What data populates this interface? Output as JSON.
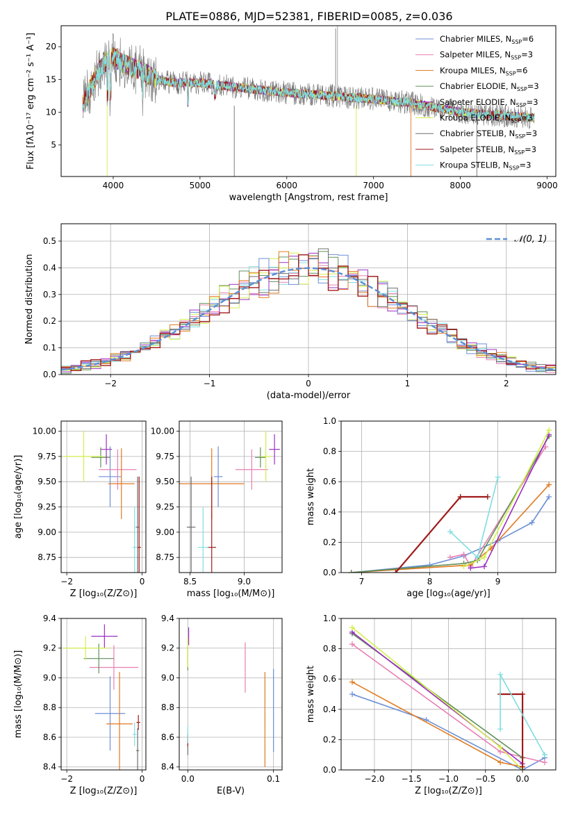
{
  "figure": {
    "title": "PLATE=0886, MJD=52381, FIBERID=0085, z=0.036"
  },
  "colors": {
    "Chabrier MILES": "#6b8fd4",
    "Salpeter MILES": "#e87fb2",
    "Kroupa MILES": "#e07a1f",
    "Chabrier ELODIE": "#5f8f5a",
    "Salpeter ELODIE": "#9b2fc0",
    "Kroupa ELODIE": "#d2ef4a",
    "Chabrier STELIB": "#6e6e6e",
    "Salpeter STELIB": "#a01a1a",
    "Kroupa STELIB": "#7fdde0",
    "gauss": "#5b8fd6"
  },
  "chart_data": [
    {
      "id": "spectrum",
      "type": "line",
      "xlabel": "wavelength [Angstrom, rest frame]",
      "ylabel": "Flux [fλ10⁻¹⁷ erg cm⁻² s⁻¹ A⁻¹]",
      "xlim": [
        3400,
        9100
      ],
      "ylim": [
        0.2,
        23.2
      ],
      "xticks": [
        4000,
        5000,
        6000,
        7000,
        8000,
        9000
      ],
      "yticks": [
        5,
        10,
        15,
        20
      ],
      "grid": false,
      "legend_position": "top-right",
      "continuum": {
        "x": [
          3650,
          3700,
          3800,
          3900,
          4000,
          4100,
          4300,
          4500,
          4700,
          5000,
          5300,
          5600,
          6000,
          6500,
          7000,
          7400,
          7600,
          7800,
          8000,
          8200,
          8500,
          8800
        ],
        "y": [
          11.0,
          12.5,
          15.5,
          17.5,
          18.5,
          17.5,
          16.5,
          15.0,
          14.5,
          14.5,
          14.0,
          13.5,
          13.0,
          12.5,
          12.0,
          11.5,
          11.0,
          10.5,
          10.0,
          9.8,
          9.5,
          9.2
        ]
      },
      "series": [
        {
          "name": "Chabrier MILES, N_SSP=6",
          "legend": {
            "pre": "Chabrier MILES, N",
            "sub": "SSP",
            "post": "=6"
          }
        },
        {
          "name": "Salpeter MILES, N_SSP=3",
          "legend": {
            "pre": "Salpeter MILES, N",
            "sub": "SSP",
            "post": "=3"
          }
        },
        {
          "name": "Kroupa MILES, N_SSP=6",
          "legend": {
            "pre": "Kroupa MILES, N",
            "sub": "SSP",
            "post": "=6"
          }
        },
        {
          "name": "Chabrier ELODIE, N_SSP=3",
          "legend": {
            "pre": "Chabrier ELODIE, N",
            "sub": "SSP",
            "post": "=3"
          }
        },
        {
          "name": "Salpeter ELODIE, N_SSP=3",
          "legend": {
            "pre": "Salpeter ELODIE, N",
            "sub": "SSP",
            "post": "=3"
          }
        },
        {
          "name": "Kroupa ELODIE, N_SSP=3",
          "legend": {
            "pre": "Kroupa ELODIE, N",
            "sub": "SSP",
            "post": "=3"
          }
        },
        {
          "name": "Chabrier STELIB, N_SSP=3",
          "legend": {
            "pre": "Chabrier STELIB, N",
            "sub": "SSP",
            "post": "=3"
          }
        },
        {
          "name": "Salpeter STELIB, N_SSP=3",
          "legend": {
            "pre": "Salpeter STELIB, N",
            "sub": "SSP",
            "post": "=3"
          }
        },
        {
          "name": "Kroupa STELIB, N_SSP=3",
          "legend": {
            "pre": "Kroupa STELIB, N",
            "sub": "SSP",
            "post": "=3"
          }
        }
      ]
    },
    {
      "id": "residuals",
      "type": "line",
      "xlabel": "(data-model)/error",
      "ylabel": "Normed distribution",
      "xlim": [
        -2.5,
        2.5
      ],
      "ylim": [
        0,
        0.565
      ],
      "xticks": [
        -2,
        -1,
        0,
        1,
        2
      ],
      "yticks": [
        0.0,
        0.1,
        0.2,
        0.3,
        0.4,
        0.5
      ],
      "grid": true,
      "legend_position": "top-right",
      "gaussian": {
        "label": "𝒩(0, 1)",
        "mean": 0,
        "sigma": 1
      }
    },
    {
      "id": "z-age",
      "type": "scatter",
      "xlabel": "Z [log₁₀(Z/Z⊙)]",
      "ylabel": "age  [log₁₀(age/yr)]",
      "xlim": [
        -2.15,
        0.1
      ],
      "ylim": [
        8.6,
        10.1
      ],
      "xticks": [
        -2,
        0
      ],
      "yticks": [
        8.75,
        9.0,
        9.25,
        9.5,
        9.75,
        10.0
      ],
      "grid": true,
      "points": [
        {
          "s": 0,
          "x": -0.85,
          "xerr": 0.3,
          "y": 9.55,
          "yerr": 0.3
        },
        {
          "s": 1,
          "x": -0.65,
          "xerr": 0.5,
          "y": 9.62,
          "yerr": 0.2
        },
        {
          "s": 2,
          "x": -0.55,
          "xerr": 0.35,
          "y": 9.48,
          "yerr": 0.35
        },
        {
          "s": 3,
          "x": -1.1,
          "xerr": 0.25,
          "y": 9.74,
          "yerr": 0.1
        },
        {
          "s": 4,
          "x": -0.95,
          "xerr": 0.15,
          "y": 9.82,
          "yerr": 0.15
        },
        {
          "s": 5,
          "x": -1.55,
          "xerr": 0.55,
          "y": 9.75,
          "yerr": 0.25
        },
        {
          "s": 6,
          "x": -0.12,
          "xerr": 0.05,
          "y": 9.05,
          "yerr": 0.5
        },
        {
          "s": 7,
          "x": -0.08,
          "xerr": 0.05,
          "y": 8.85,
          "yerr": 0.7
        },
        {
          "s": 8,
          "x": -0.2,
          "xerr": 0.05,
          "y": 8.85,
          "yerr": 0.4
        }
      ]
    },
    {
      "id": "mass-age",
      "type": "scatter",
      "xlabel": "mass [log₁₀(M/M⊙)]",
      "ylabel": "",
      "xlim": [
        8.4,
        9.35
      ],
      "ylim": [
        8.6,
        10.1
      ],
      "xticks": [
        8.5,
        9.0
      ],
      "yticks": [
        8.75,
        9.0,
        9.25,
        9.5,
        9.75,
        10.0
      ],
      "grid": true,
      "points": [
        {
          "s": 0,
          "x": 8.76,
          "xerr": 0.04,
          "y": 9.55,
          "yerr": 0.3
        },
        {
          "s": 1,
          "x": 9.07,
          "xerr": 0.15,
          "y": 9.62,
          "yerr": 0.2
        },
        {
          "s": 2,
          "x": 8.7,
          "xerr": 0.3,
          "y": 9.48,
          "yerr": 0.35
        },
        {
          "s": 3,
          "x": 9.15,
          "xerr": 0.05,
          "y": 9.74,
          "yerr": 0.1
        },
        {
          "s": 4,
          "x": 9.28,
          "xerr": 0.05,
          "y": 9.82,
          "yerr": 0.15
        },
        {
          "s": 5,
          "x": 9.2,
          "xerr": 0.05,
          "y": 9.75,
          "yerr": 0.25
        },
        {
          "s": 6,
          "x": 8.51,
          "xerr": 0.04,
          "y": 9.05,
          "yerr": 0.5
        },
        {
          "s": 7,
          "x": 8.7,
          "xerr": 0.04,
          "y": 8.85,
          "yerr": 0.7
        },
        {
          "s": 8,
          "x": 8.62,
          "xerr": 0.05,
          "y": 8.85,
          "yerr": 0.4
        }
      ]
    },
    {
      "id": "age-massweight",
      "type": "line",
      "xlabel": "age  [log₁₀(age/yr)]",
      "ylabel": "mass weight",
      "xlim": [
        6.7,
        9.85
      ],
      "ylim": [
        0,
        1
      ],
      "xticks": [
        7,
        8,
        9
      ],
      "yticks": [
        0.0,
        0.2,
        0.4,
        0.6,
        0.8,
        1.0
      ],
      "grid": true,
      "series": [
        {
          "s": 0,
          "x": [
            6.85,
            8.0,
            8.5,
            9.0,
            9.5,
            9.75
          ],
          "y": [
            0.0,
            0.05,
            0.11,
            0.21,
            0.33,
            0.5
          ]
        },
        {
          "s": 1,
          "x": [
            8.3,
            8.5,
            8.6,
            9.7
          ],
          "y": [
            0.1,
            0.12,
            0.04,
            0.83
          ]
        },
        {
          "s": 2,
          "x": [
            6.85,
            8.6,
            8.9,
            9.75
          ],
          "y": [
            0.0,
            0.05,
            0.16,
            0.58
          ]
        },
        {
          "s": 3,
          "x": [
            6.85,
            8.5,
            8.7,
            9.75
          ],
          "y": [
            0.0,
            0.06,
            0.08,
            0.9
          ]
        },
        {
          "s": 4,
          "x": [
            8.6,
            8.8,
            9.75
          ],
          "y": [
            0.03,
            0.04,
            0.91
          ]
        },
        {
          "s": 5,
          "x": [
            8.5,
            8.8,
            9.75
          ],
          "y": [
            0.04,
            0.1,
            0.94
          ]
        },
        {
          "s": 6,
          "x": [
            8.45,
            8.85
          ],
          "y": [
            0.5,
            0.5
          ]
        },
        {
          "s": 7,
          "x": [
            7.5,
            8.45,
            8.85
          ],
          "y": [
            0.0,
            0.5,
            0.5
          ]
        },
        {
          "s": 8,
          "x": [
            8.3,
            8.7,
            9.0
          ],
          "y": [
            0.27,
            0.1,
            0.63
          ]
        }
      ]
    },
    {
      "id": "z-mass",
      "type": "scatter",
      "xlabel": "Z [log₁₀(Z/Z⊙)]",
      "ylabel": "mass [log₁₀(M/M⊙)]",
      "xlim": [
        -2.15,
        0.1
      ],
      "ylim": [
        8.38,
        9.4
      ],
      "xticks": [
        -2,
        0
      ],
      "yticks": [
        8.4,
        8.6,
        8.8,
        9.0,
        9.2,
        9.4
      ],
      "grid": true,
      "points": [
        {
          "s": 0,
          "x": -0.85,
          "xerr": 0.4,
          "y": 8.76,
          "yerr": 0.25
        },
        {
          "s": 1,
          "x": -0.75,
          "xerr": 0.65,
          "y": 9.07,
          "yerr": 0.15
        },
        {
          "s": 2,
          "x": -0.6,
          "xerr": 0.35,
          "y": 8.69,
          "yerr": 0.35
        },
        {
          "s": 3,
          "x": -1.15,
          "xerr": 0.4,
          "y": 9.13,
          "yerr": 0.1
        },
        {
          "s": 4,
          "x": -1.0,
          "xerr": 0.35,
          "y": 9.28,
          "yerr": 0.08
        },
        {
          "s": 5,
          "x": -1.5,
          "xerr": 0.6,
          "y": 9.2,
          "yerr": 0.08
        },
        {
          "s": 6,
          "x": -0.12,
          "xerr": 0.04,
          "y": 8.51,
          "yerr": 0.15
        },
        {
          "s": 7,
          "x": -0.1,
          "xerr": 0.05,
          "y": 8.7,
          "yerr": 0.05
        },
        {
          "s": 8,
          "x": -0.2,
          "xerr": 0.05,
          "y": 8.62,
          "yerr": 0.08
        }
      ]
    },
    {
      "id": "ebv-mass",
      "type": "scatter",
      "xlabel": "E(B-V)",
      "ylabel": "",
      "xlim": [
        -0.01,
        0.11
      ],
      "ylim": [
        8.38,
        9.4
      ],
      "xticks": [
        0.0,
        0.1
      ],
      "yticks": [
        8.4,
        8.6,
        8.8,
        9.0,
        9.2,
        9.4
      ],
      "grid": true,
      "points": [
        {
          "s": 0,
          "x": 0.1,
          "xerr": 0,
          "y": 8.78,
          "yerr": 0.28
        },
        {
          "s": 1,
          "x": 0.067,
          "xerr": 0,
          "y": 9.07,
          "yerr": 0.17
        },
        {
          "s": 2,
          "x": 0.09,
          "xerr": 0,
          "y": 8.72,
          "yerr": 0.32
        },
        {
          "s": 3,
          "x": 0.0,
          "xerr": 0,
          "y": 9.13,
          "yerr": 0.08
        },
        {
          "s": 4,
          "x": 0.001,
          "xerr": 0,
          "y": 9.28,
          "yerr": 0.06
        },
        {
          "s": 5,
          "x": 0.0,
          "xerr": 0,
          "y": 9.17,
          "yerr": 0.1
        },
        {
          "s": 6,
          "x": 0.0,
          "xerr": 0,
          "y": 8.52,
          "yerr": 0.04
        },
        {
          "s": 7,
          "x": 0.0,
          "xerr": 0,
          "y": 8.58,
          "yerr": 0.04
        },
        {
          "s": 8,
          "x": 0.0,
          "xerr": 0,
          "y": 8.62,
          "yerr": 0.06
        }
      ]
    },
    {
      "id": "z-massweight",
      "type": "line",
      "xlabel": "Z [log₁₀(Z/Z⊙)]",
      "ylabel": "mass weight",
      "xlim": [
        -2.45,
        0.45
      ],
      "ylim": [
        0,
        1
      ],
      "xticks": [
        -2.0,
        -1.5,
        -1.0,
        -0.5,
        0.0
      ],
      "yticks": [
        0.0,
        0.2,
        0.4,
        0.6,
        0.8,
        1.0
      ],
      "grid": true,
      "series": [
        {
          "s": 0,
          "x": [
            -2.3,
            -1.3,
            0.0,
            0.3
          ],
          "y": [
            0.5,
            0.33,
            0.0,
            0.08
          ]
        },
        {
          "s": 1,
          "x": [
            -2.3,
            -0.3,
            0.3
          ],
          "y": [
            0.83,
            0.12,
            0.05
          ]
        },
        {
          "s": 2,
          "x": [
            -2.3,
            -0.3,
            0.0
          ],
          "y": [
            0.58,
            0.05,
            0.02
          ]
        },
        {
          "s": 3,
          "x": [
            -2.3,
            0.0
          ],
          "y": [
            0.9,
            0.08
          ]
        },
        {
          "s": 4,
          "x": [
            -2.3,
            0.0
          ],
          "y": [
            0.91,
            0.04
          ]
        },
        {
          "s": 5,
          "x": [
            -2.3,
            -0.3,
            0.0
          ],
          "y": [
            0.94,
            0.15,
            0.0
          ]
        },
        {
          "s": 6,
          "x": [
            -0.3,
            0.0,
            0.0
          ],
          "y": [
            0.5,
            0.5,
            0.0
          ]
        },
        {
          "s": 7,
          "x": [
            -0.3,
            0.0,
            0.0
          ],
          "y": [
            0.5,
            0.5,
            0.02
          ]
        },
        {
          "s": 8,
          "x": [
            -0.3,
            -0.3,
            0.3
          ],
          "y": [
            0.27,
            0.63,
            0.1
          ]
        }
      ]
    }
  ]
}
